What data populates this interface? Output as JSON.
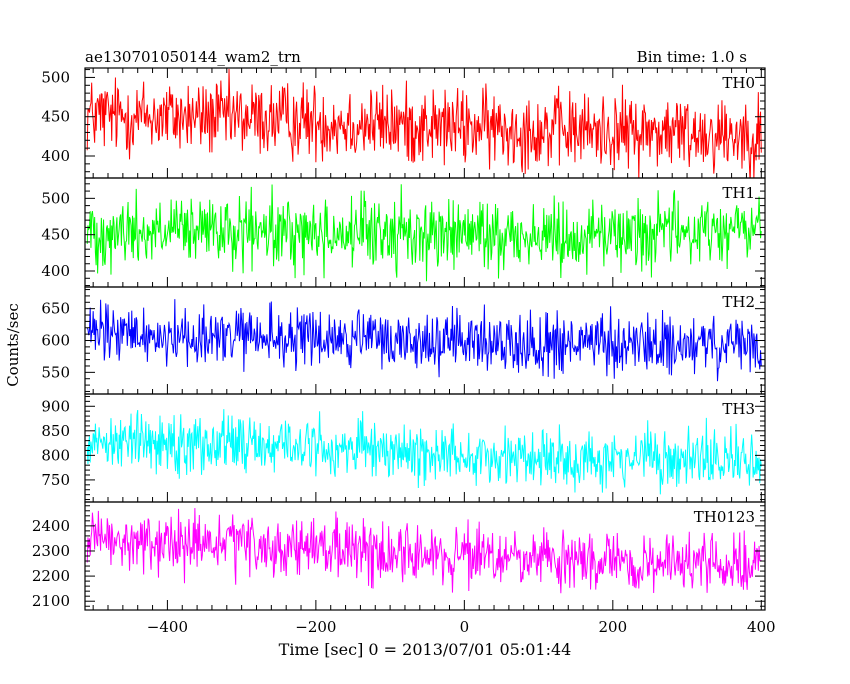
{
  "chart_data": {
    "type": "line",
    "title_left": "ae130701050144_wam2_trn",
    "title_right": "Bin time: 1.0 s",
    "xlabel": "Time [sec] 0 = 2013/07/01 05:01:44",
    "ylabel": "Counts/sec",
    "xlim": [
      -511,
      405
    ],
    "x_ticks": [
      -400,
      -200,
      0,
      200,
      400
    ],
    "x_tick_labels": [
      "−400",
      "−200",
      "0",
      "200",
      "400"
    ],
    "x_data_range": [
      -508,
      400
    ],
    "sample_step": 1.0,
    "grid": false,
    "panels": [
      {
        "name": "TH0",
        "color": "#ff0000",
        "ylim": [
          372,
          512
        ],
        "y_ticks": [
          400,
          450,
          500
        ],
        "y_tick_labels": [
          "400",
          "450",
          "500"
        ],
        "trend": [
          [
            -508,
            452
          ],
          [
            -300,
            448
          ],
          [
            -100,
            440
          ],
          [
            100,
            433
          ],
          [
            400,
            428
          ]
        ],
        "noise_amplitude": 27
      },
      {
        "name": "TH1",
        "color": "#00ff00",
        "ylim": [
          378,
          528
        ],
        "y_ticks": [
          400,
          450,
          500
        ],
        "y_tick_labels": [
          "400",
          "450",
          "500"
        ],
        "trend": [
          [
            -508,
            455
          ],
          [
            -300,
            452
          ],
          [
            -100,
            452
          ],
          [
            100,
            448
          ],
          [
            400,
            458
          ]
        ],
        "noise_amplitude": 27
      },
      {
        "name": "TH2",
        "color": "#0000ff",
        "ylim": [
          516,
          684
        ],
        "y_ticks": [
          550,
          600,
          650
        ],
        "y_tick_labels": [
          "550",
          "600",
          "650"
        ],
        "trend": [
          [
            -508,
            610
          ],
          [
            -300,
            605
          ],
          [
            -100,
            600
          ],
          [
            100,
            595
          ],
          [
            400,
            590
          ]
        ],
        "noise_amplitude": 26
      },
      {
        "name": "TH3",
        "color": "#00ffff",
        "ylim": [
          705,
          925
        ],
        "y_ticks": [
          750,
          800,
          850,
          900
        ],
        "y_tick_labels": [
          "750",
          "800",
          "850",
          "900"
        ],
        "trend": [
          [
            -508,
            832
          ],
          [
            -300,
            825
          ],
          [
            -100,
            808
          ],
          [
            100,
            795
          ],
          [
            400,
            790
          ]
        ],
        "noise_amplitude": 33
      },
      {
        "name": "TH0123",
        "color": "#ff00ff",
        "ylim": [
          2065,
          2495
        ],
        "y_ticks": [
          2100,
          2200,
          2300,
          2400
        ],
        "y_tick_labels": [
          "2100",
          "2200",
          "2300",
          "2400"
        ],
        "trend": [
          [
            -508,
            2335
          ],
          [
            -300,
            2320
          ],
          [
            -100,
            2295
          ],
          [
            100,
            2260
          ],
          [
            400,
            2240
          ]
        ],
        "noise_amplitude": 65
      }
    ]
  }
}
